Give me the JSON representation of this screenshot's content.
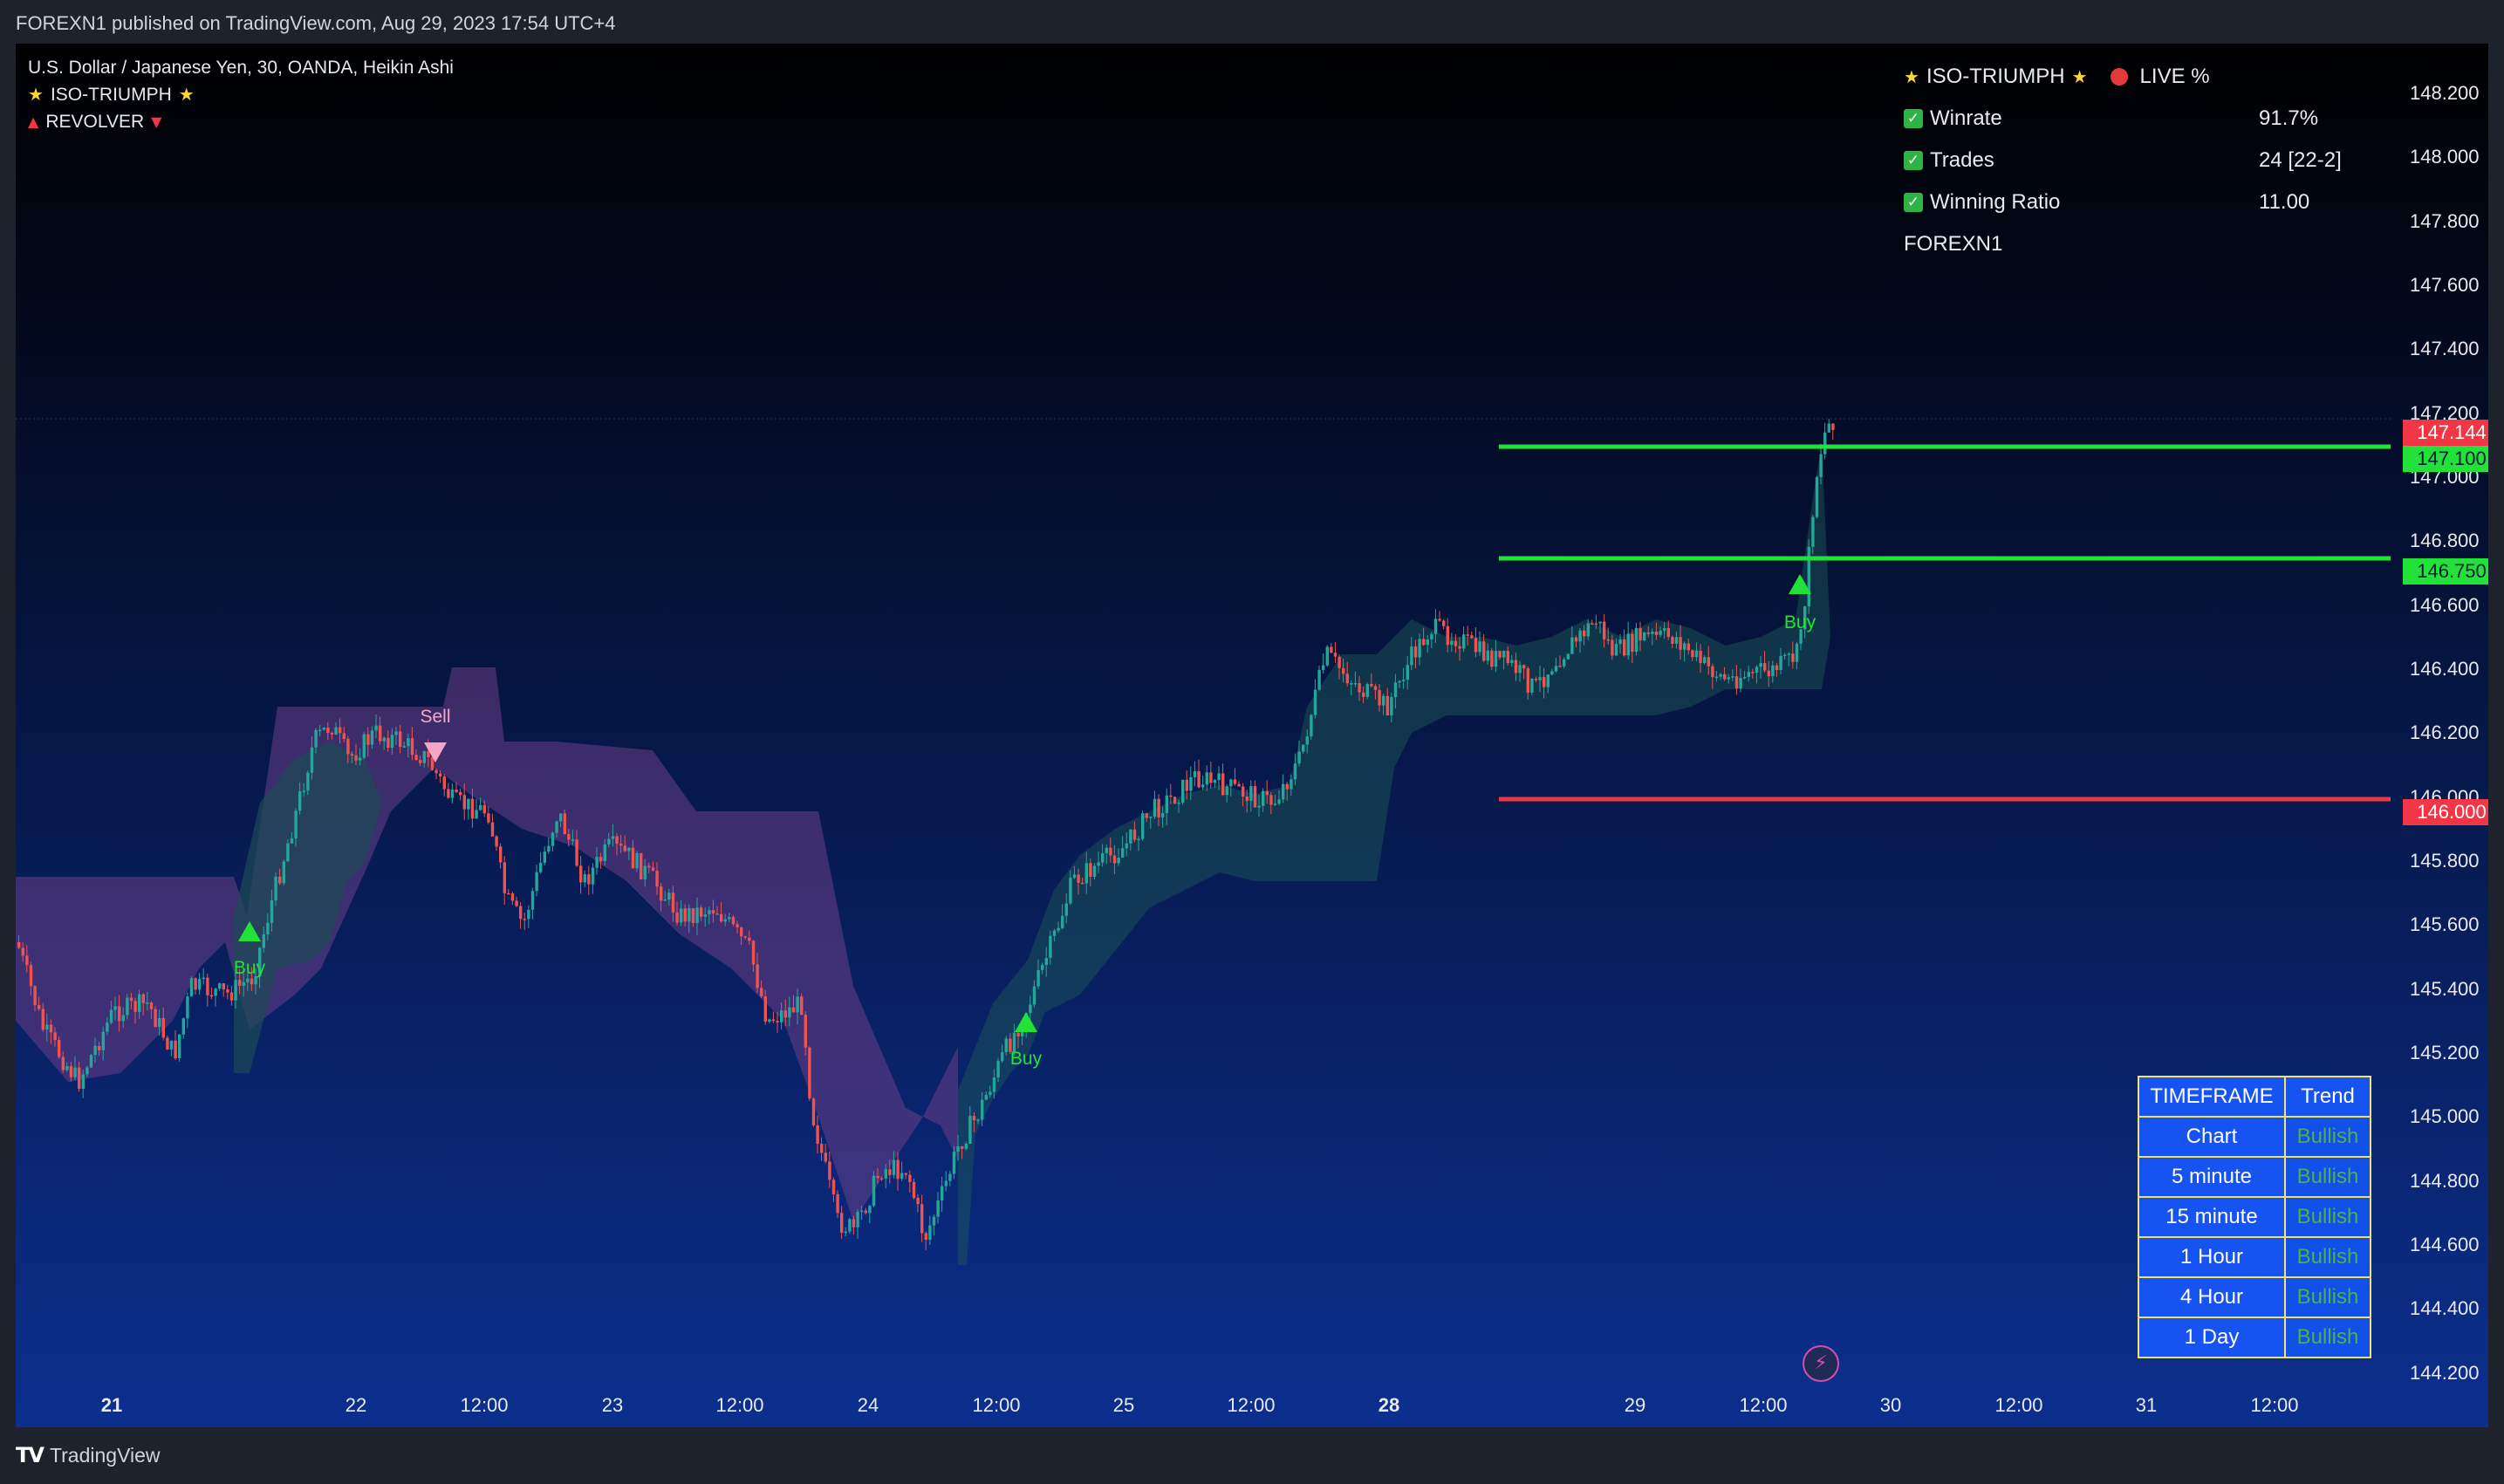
{
  "header": {
    "published": "FOREXN1 published on TradingView.com, Aug 29, 2023 17:54 UTC+4"
  },
  "legend": {
    "symbol": "U.S. Dollar / Japanese Yen, 30, OANDA, Heikin Ashi",
    "indicator1": "ISO-TRIUMPH",
    "indicator2": "REVOLVER"
  },
  "stats_panel": {
    "title": "ISO-TRIUMPH",
    "live": "LIVE %",
    "rows": [
      {
        "label": "Winrate",
        "value": "91.7%"
      },
      {
        "label": "Trades",
        "value": "24 [22-2]"
      },
      {
        "label": "Winning Ratio",
        "value": "11.00"
      }
    ],
    "author": "FOREXN1"
  },
  "price_axis": {
    "labels": [
      "148.200",
      "148.000",
      "147.800",
      "147.600",
      "147.400",
      "147.200",
      "147.000",
      "146.800",
      "146.600",
      "146.400",
      "146.200",
      "146.000",
      "145.800",
      "145.600",
      "145.400",
      "145.200",
      "145.000",
      "144.800",
      "144.600",
      "144.400",
      "144.200"
    ],
    "current_price": "147.144",
    "level_tp2": "147.100",
    "level_tp1": "146.750",
    "level_sl": "146.000"
  },
  "time_axis": {
    "labels": [
      "21",
      "22",
      "12:00",
      "23",
      "12:00",
      "24",
      "12:00",
      "25",
      "12:00",
      "28",
      "29",
      "12:00",
      "30",
      "12:00",
      "31",
      "12:00"
    ]
  },
  "signals": {
    "buy": "Buy",
    "sell": "Sell"
  },
  "timeframe_table": {
    "headers": [
      "TIMEFRAME",
      "Trend"
    ],
    "rows": [
      {
        "tf": "Chart",
        "trend": "Bullish"
      },
      {
        "tf": "5 minute",
        "trend": "Bullish"
      },
      {
        "tf": "15 minute",
        "trend": "Bullish"
      },
      {
        "tf": "1 Hour",
        "trend": "Bullish"
      },
      {
        "tf": "4 Hour",
        "trend": "Bullish"
      },
      {
        "tf": "1 Day",
        "trend": "Bullish"
      }
    ]
  },
  "footer": {
    "brand": "TradingView"
  },
  "colors": {
    "bull": "#26a69a",
    "bear": "#ef5350",
    "level_green": "#22e23a",
    "level_red": "#f23645",
    "bg_top": "#000000",
    "bg_bottom": "#0c2f8e"
  },
  "icons": {
    "bolt": "lightning-bolt-icon",
    "check": "check-mark-icon"
  }
}
